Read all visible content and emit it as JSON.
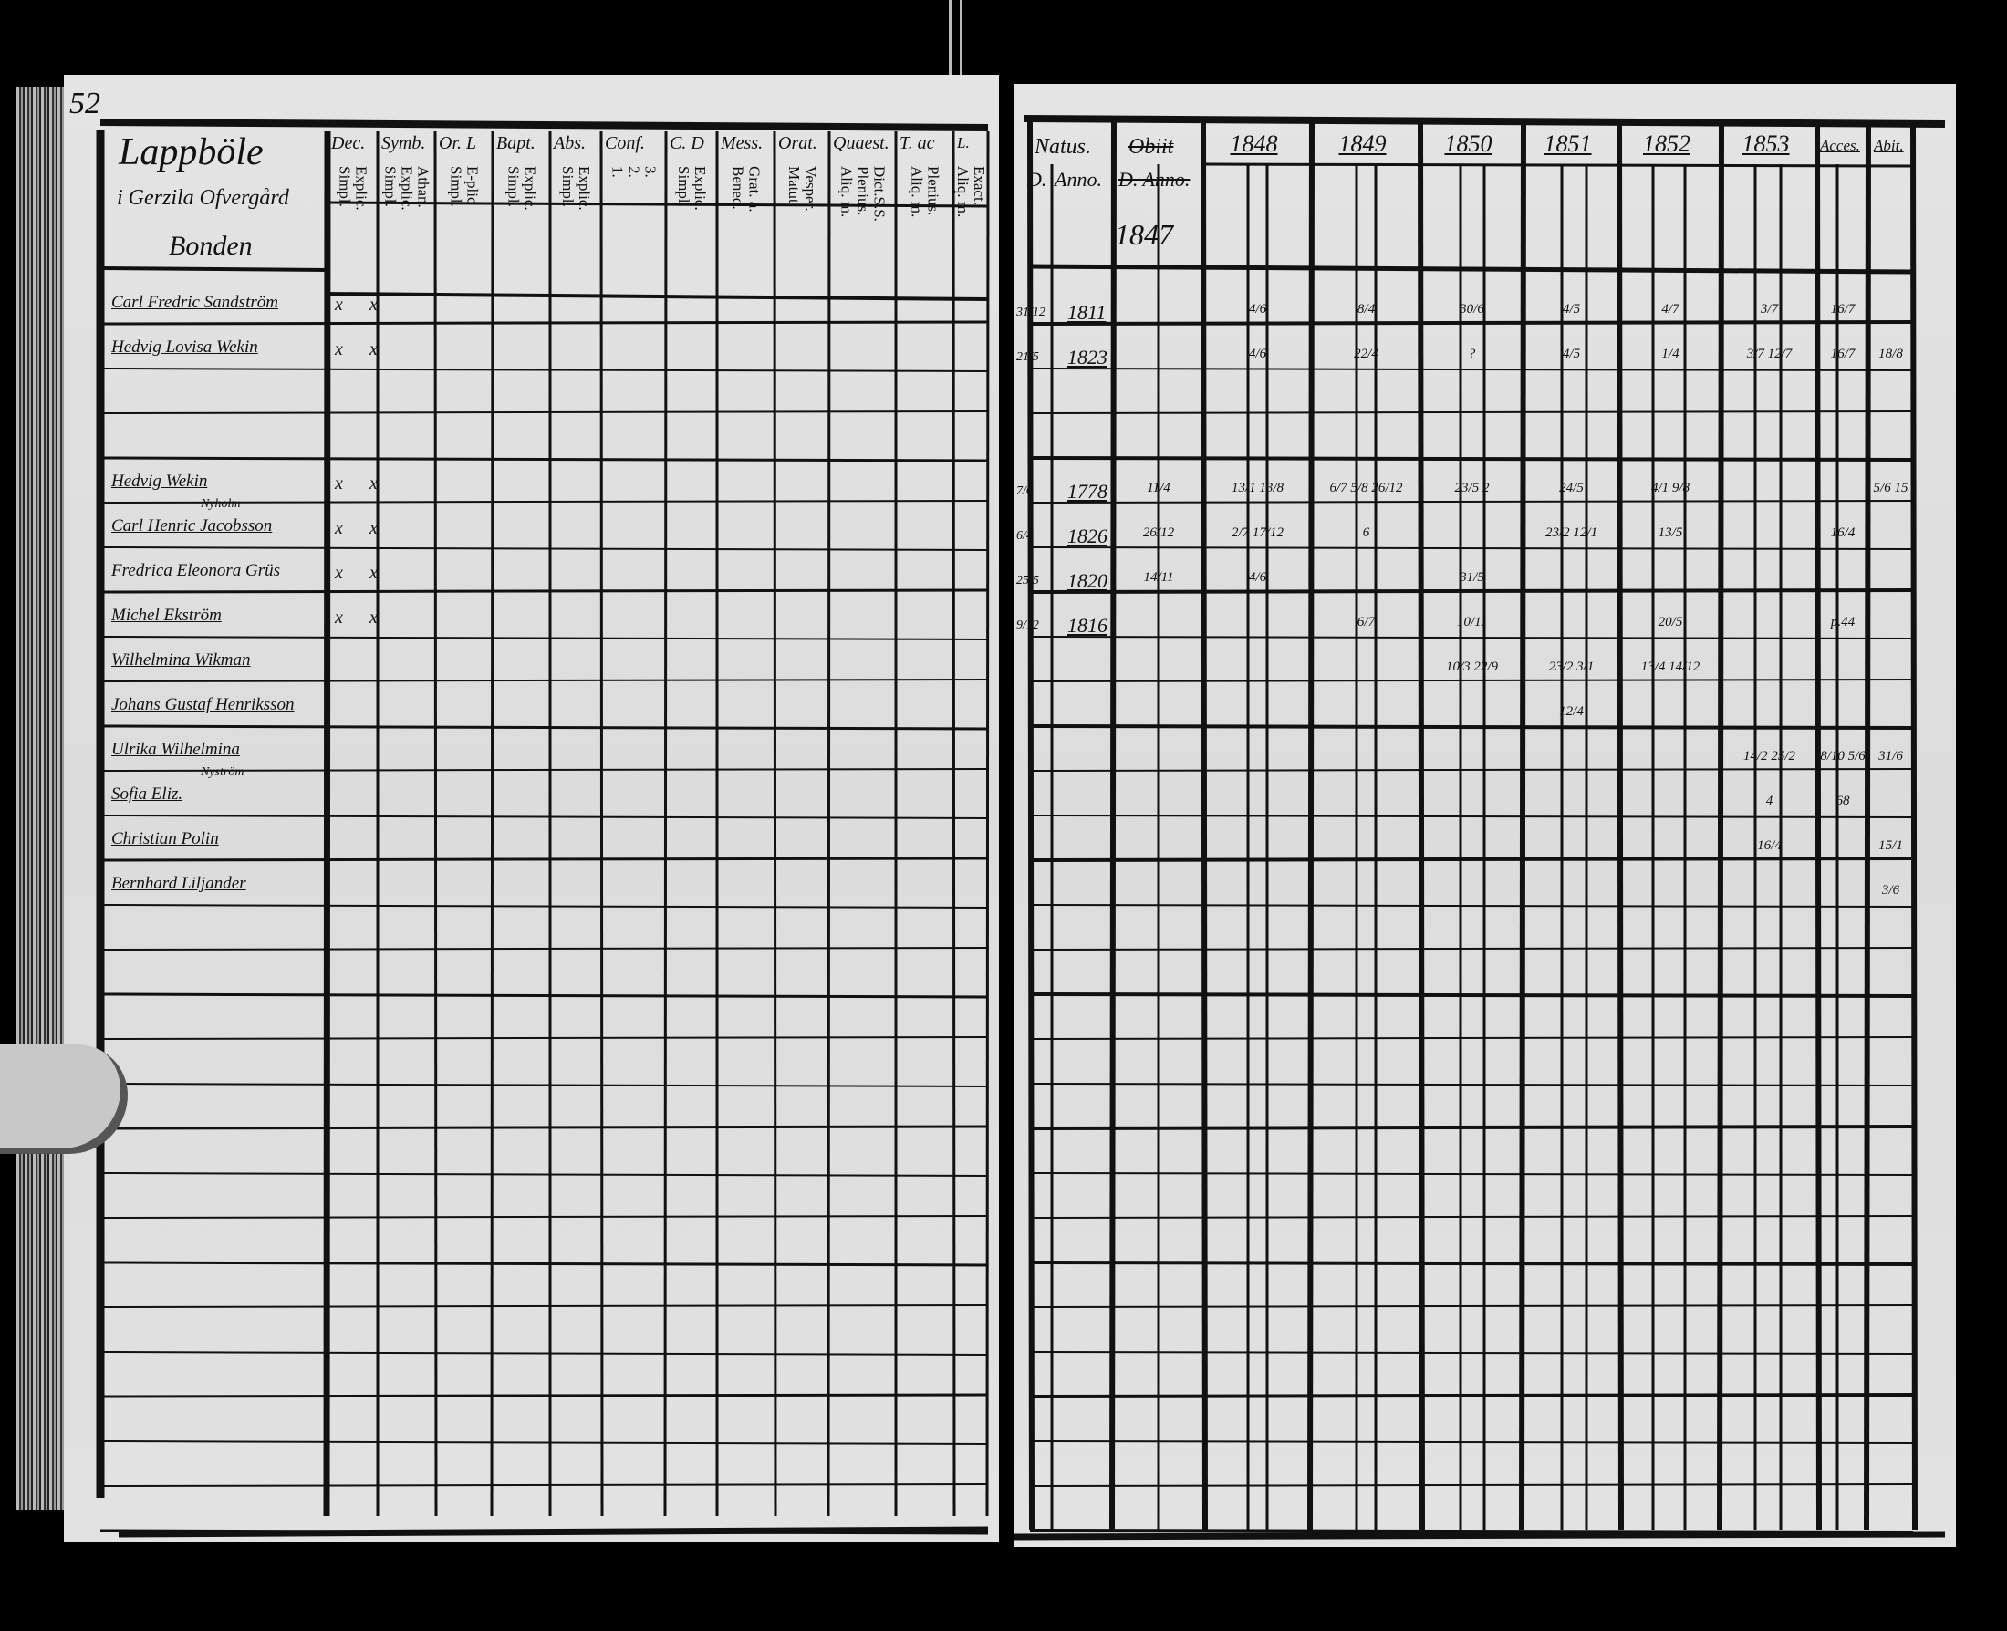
{
  "left_page": {
    "page_number": "52",
    "village": "Lappböle",
    "farm": "i Gerzila Ofvergård",
    "household_head_label": "Bonden",
    "columns": [
      {
        "label": "Dec.",
        "sub": [
          "Explic.",
          "Simpl."
        ]
      },
      {
        "label": "Symb.",
        "sub": [
          "Athan.",
          "Explic.",
          "Simpl."
        ]
      },
      {
        "label": "Or. L",
        "sub": [
          "E-plic",
          "Simpl."
        ]
      },
      {
        "label": "Bapt.",
        "sub": [
          "Explic.",
          "Simpl."
        ]
      },
      {
        "label": "Abs.",
        "sub": [
          "Explic.",
          "Simpl."
        ]
      },
      {
        "label": "Conf.",
        "sub": [
          "3.",
          "2.",
          "1."
        ]
      },
      {
        "label": "C. D",
        "sub": [
          "Explic.",
          "Simpl."
        ]
      },
      {
        "label": "Mess.",
        "sub": [
          "Grat. a.",
          "Bened."
        ]
      },
      {
        "label": "Orat.",
        "sub": [
          "Vesper.",
          "Matut."
        ]
      },
      {
        "label": "Quaest.",
        "sub": [
          "Dict.S.S.",
          "Plenius.",
          "Aliq. m."
        ]
      },
      {
        "label": "T. ac",
        "sub": [
          "Plenius.",
          "Aliq. m."
        ]
      },
      {
        "label": "L.",
        "sub": [
          "Exact.",
          "Aliq. m."
        ]
      }
    ],
    "persons": [
      {
        "name": "Carl Fredric Sandström",
        "note": "",
        "marks": [
          "x",
          "x"
        ]
      },
      {
        "name": "Hedvig Lovisa Wekin",
        "note": "",
        "marks": [
          "x",
          "x"
        ]
      },
      {
        "name": "",
        "note": "",
        "marks": []
      },
      {
        "name": "",
        "note": "",
        "marks": []
      },
      {
        "name": "Hedvig Wekin",
        "note": "Nyholm",
        "marks": [
          "x",
          "x"
        ]
      },
      {
        "name": "Carl Henric Jacobsson",
        "note": "",
        "marks": [
          "x",
          "x"
        ]
      },
      {
        "name": "Fredrica Eleonora Grüs",
        "note": "",
        "marks": [
          "x",
          "x"
        ]
      },
      {
        "name": "Michel Ekström",
        "note": "",
        "marks": [
          "x",
          "x"
        ]
      },
      {
        "name": "Wilhelmina Wikman",
        "note": "",
        "marks": []
      },
      {
        "name": "Johans Gustaf Henriksson",
        "note": "",
        "marks": []
      },
      {
        "name": "Ulrika Wilhelmina",
        "note": "Nyström",
        "marks": []
      },
      {
        "name": "Sofia Eliz.",
        "note": "",
        "marks": []
      },
      {
        "name": "Christian Polin",
        "note": "",
        "marks": []
      },
      {
        "name": "Bernhard Liljander",
        "note": "",
        "marks": []
      }
    ]
  },
  "right_page": {
    "natus_label": "Natus.",
    "natus_day_label": "D.",
    "natus_year_label": "Anno.",
    "obiit_label": "Obiit",
    "obiit_sub_label": "D. Anno.",
    "obiit_note": "1847",
    "year_columns": [
      "1848",
      "1849",
      "1850",
      "1851",
      "1852",
      "1853"
    ],
    "acces_label": "Acces.",
    "abit_label": "Abit.",
    "rows": [
      {
        "day": "31/12",
        "year": "1811",
        "cells": [
          "",
          "4/6",
          "8/4",
          "30/6",
          "4/5",
          "4/7",
          "3/7",
          "16/7",
          ""
        ]
      },
      {
        "day": "21/5",
        "year": "1823",
        "cells": [
          "",
          "4/6",
          "22/4",
          "?",
          "4/5",
          "1/4",
          "3/7 12/7",
          "16/7",
          "18/8"
        ]
      },
      {
        "day": "",
        "year": "",
        "cells": [
          "",
          "",
          "",
          "",
          "",
          "",
          "",
          "",
          ""
        ]
      },
      {
        "day": "",
        "year": "",
        "cells": [
          "",
          "",
          "",
          "",
          "",
          "",
          "",
          "",
          ""
        ]
      },
      {
        "day": "7/6",
        "year": "1778",
        "cells": [
          "11/4",
          "13/1 13/8",
          "6/7 5/8 26/12",
          "23/5 2",
          "24/5",
          "4/1 9/8",
          "",
          "",
          "5/6 15"
        ]
      },
      {
        "day": "6/4",
        "year": "1826",
        "cells": [
          "26/12",
          "2/7 17/12",
          "6",
          "",
          "23/2 12/1",
          "13/5",
          "",
          "16/4",
          ""
        ]
      },
      {
        "day": "25/5",
        "year": "1820",
        "cells": [
          "14/11",
          "4/6",
          "",
          "31/5",
          "",
          "",
          "",
          "",
          ""
        ]
      },
      {
        "day": "9/12",
        "year": "1816",
        "cells": [
          "",
          "",
          "6/7",
          "10/11",
          "",
          "20/5",
          "",
          "p.44",
          ""
        ]
      },
      {
        "day": "",
        "year": "",
        "cells": [
          "",
          "",
          "",
          "10/3 22/9",
          "23/2 3/1",
          "13/4 14/12",
          "",
          "",
          ""
        ]
      },
      {
        "day": "",
        "year": "",
        "cells": [
          "",
          "",
          "",
          "",
          "12/4",
          "",
          "",
          "",
          ""
        ]
      },
      {
        "day": "",
        "year": "",
        "cells": [
          "",
          "",
          "",
          "",
          "",
          "",
          "14/2 25/2",
          "8/10 5/6",
          "31/6"
        ]
      },
      {
        "day": "",
        "year": "",
        "cells": [
          "",
          "",
          "",
          "",
          "",
          "",
          "4",
          "68",
          ""
        ]
      },
      {
        "day": "",
        "year": "",
        "cells": [
          "",
          "",
          "",
          "",
          "",
          "",
          "16/4",
          "",
          "15/1"
        ]
      },
      {
        "day": "",
        "year": "",
        "cells": [
          "",
          "",
          "",
          "",
          "",
          "",
          "",
          "",
          "3/6"
        ]
      }
    ]
  }
}
